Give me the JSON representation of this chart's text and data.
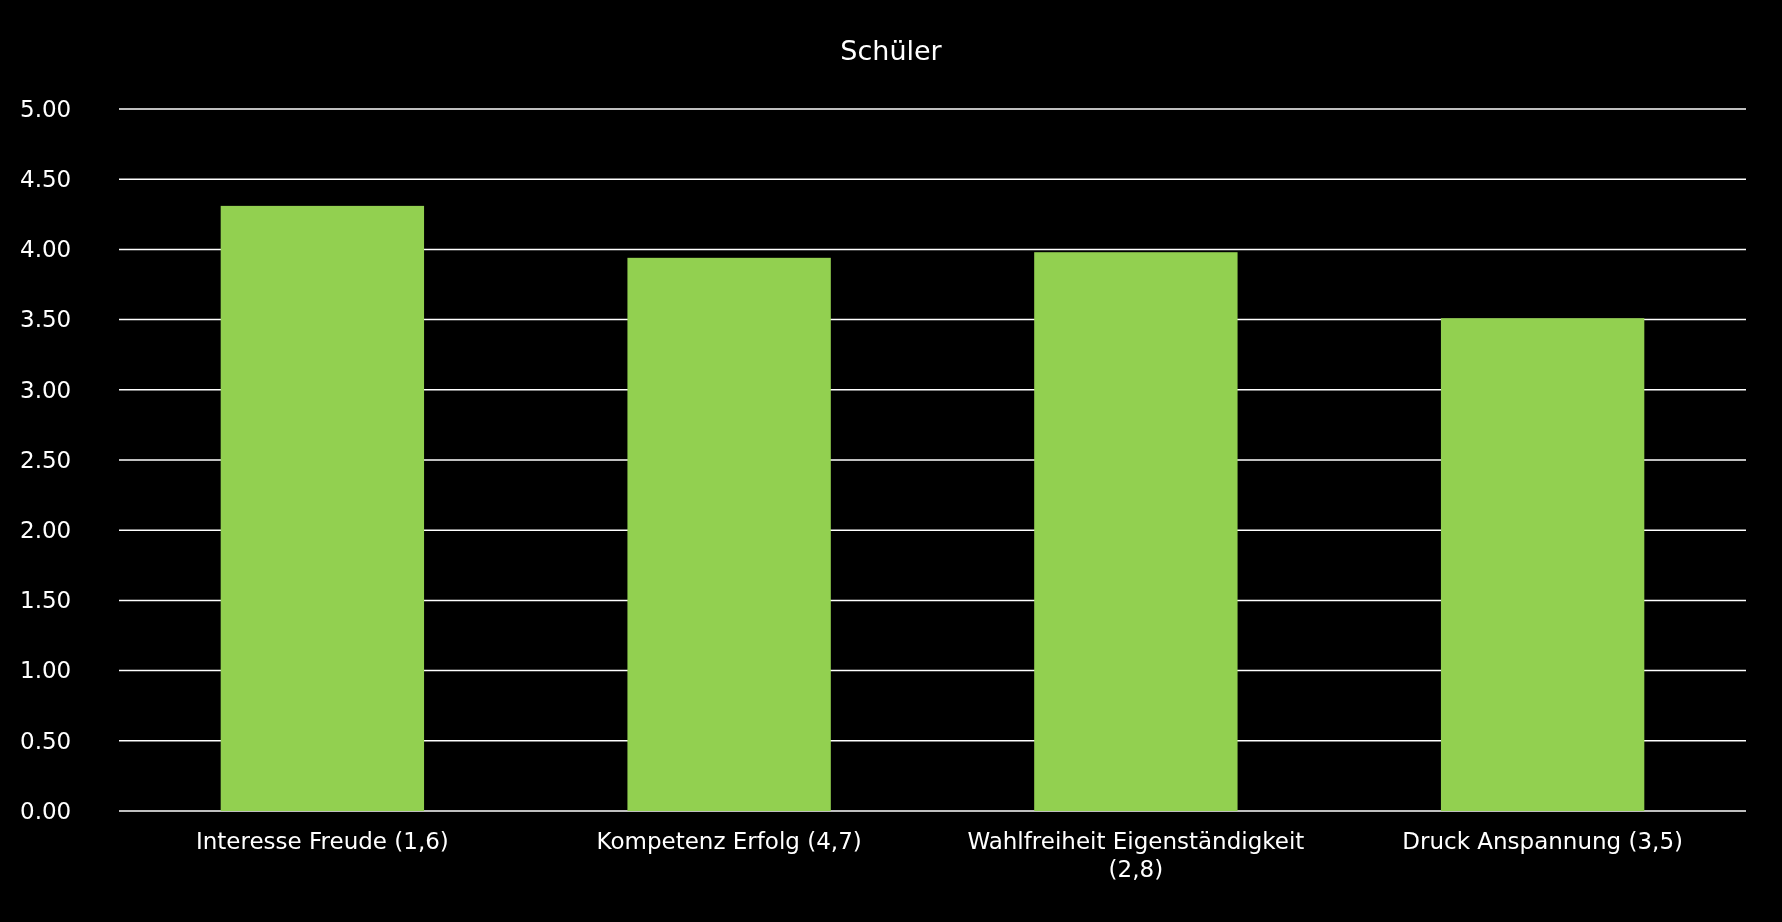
{
  "chart_data": {
    "type": "bar",
    "title": "Schüler",
    "categories": [
      "Interesse Freude (1,6)",
      "Kompetenz Erfolg (4,7)",
      "Wahlfreiheit Eigenständigkeit (2,8)",
      "Druck Anspannung (3,5)"
    ],
    "values": [
      4.31,
      3.94,
      3.98,
      3.51
    ],
    "color": "#92d050",
    "ylim": [
      0,
      5
    ],
    "yticks": [
      {
        "value": 0,
        "label": "0.00"
      },
      {
        "value": 0.5,
        "label": "0.50"
      },
      {
        "value": 1,
        "label": "1.00"
      },
      {
        "value": 1.5,
        "label": "1.50"
      },
      {
        "value": 2,
        "label": "2.00"
      },
      {
        "value": 2.5,
        "label": "2.50"
      },
      {
        "value": 3,
        "label": "3.00"
      },
      {
        "value": 3.5,
        "label": "3.50"
      },
      {
        "value": 4,
        "label": "4.00"
      },
      {
        "value": 4.5,
        "label": "4.50"
      },
      {
        "value": 5,
        "label": "5.00"
      }
    ],
    "grid": "y"
  }
}
